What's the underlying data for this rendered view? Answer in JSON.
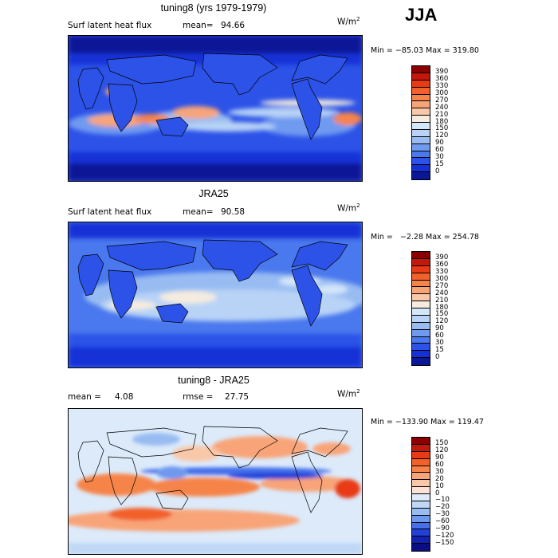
{
  "season": "JJA",
  "panels": [
    {
      "title": "tuning8 (yrs 1979-1979)",
      "variable": "Surf latent heat flux",
      "mean_label": "mean=",
      "mean_value": "94.66",
      "unit": "W/m",
      "unit_exp": "2",
      "stats": "Min = −85.03 Max = 319.80",
      "scale": {
        "labels": [
          "390",
          "360",
          "330",
          "300",
          "270",
          "240",
          "210",
          "180",
          "150",
          "120",
          "90",
          "60",
          "30",
          "15",
          "0"
        ],
        "colors": [
          "#8b0000",
          "#c4180c",
          "#e83a14",
          "#f2602c",
          "#f6844a",
          "#f8a478",
          "#f9c8a8",
          "#f5ecdf",
          "#d4e6fa",
          "#b8d3f6",
          "#98bcf2",
          "#709af0",
          "#4a78ee",
          "#2c52e8",
          "#1430d6",
          "#0a1896"
        ]
      }
    },
    {
      "title": "JRA25",
      "variable": "Surf latent heat flux",
      "mean_label": "mean=",
      "mean_value": "90.58",
      "unit": "W/m",
      "unit_exp": "2",
      "stats": "Min =   −2.28 Max = 254.78",
      "scale": {
        "labels": [
          "390",
          "360",
          "330",
          "300",
          "270",
          "240",
          "210",
          "180",
          "150",
          "120",
          "90",
          "60",
          "30",
          "15",
          "0"
        ],
        "colors": [
          "#8b0000",
          "#c4180c",
          "#e83a14",
          "#f2602c",
          "#f6844a",
          "#f8a478",
          "#f9c8a8",
          "#f5ecdf",
          "#d4e6fa",
          "#b8d3f6",
          "#98bcf2",
          "#709af0",
          "#4a78ee",
          "#2c52e8",
          "#1430d6",
          "#0a1896"
        ]
      }
    },
    {
      "title": "tuning8 - JRA25",
      "mean_label": "mean =",
      "mean_value": "4.08",
      "rmse_label": "rmse =",
      "rmse_value": "27.75",
      "unit": "W/m",
      "unit_exp": "2",
      "stats": "Min = −133.90 Max = 119.47",
      "scale": {
        "labels": [
          "150",
          "120",
          "90",
          "60",
          "30",
          "20",
          "10",
          "0",
          "−10",
          "−20",
          "−30",
          "−60",
          "−90",
          "−120",
          "−150"
        ],
        "colors": [
          "#8b0000",
          "#c4180c",
          "#e83a14",
          "#f2602c",
          "#f6844a",
          "#f8a478",
          "#f9c8a8",
          "#fbe2d4",
          "#dceafa",
          "#c0d8f6",
          "#98bcf2",
          "#6e98ee",
          "#4570ea",
          "#2240d8",
          "#1222b0",
          "#0a0e80"
        ]
      }
    }
  ]
}
